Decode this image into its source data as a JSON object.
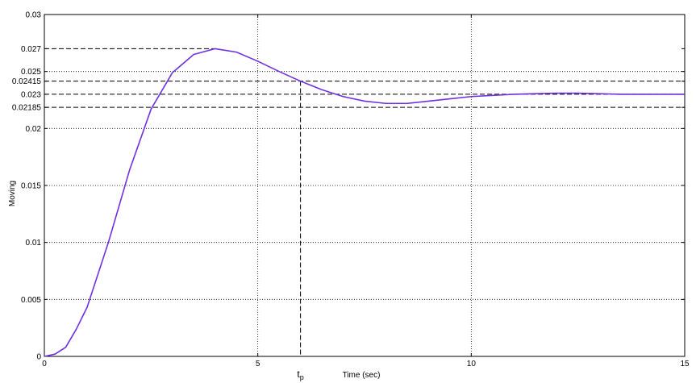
{
  "chart_data": {
    "type": "line",
    "xlabel": "Time (sec)",
    "ylabel": "Moving",
    "x": [
      0,
      0.25,
      0.5,
      0.75,
      1,
      1.5,
      2,
      2.5,
      3,
      3.5,
      4,
      4.5,
      5,
      5.5,
      6,
      6.5,
      7,
      7.5,
      8,
      8.5,
      9,
      9.5,
      10,
      10.5,
      11,
      11.5,
      12,
      12.5,
      13,
      13.5,
      14,
      14.5,
      15
    ],
    "series": [
      {
        "color": "#7030e0",
        "values": [
          0,
          0.0002,
          0.0008,
          0.0024,
          0.0043,
          0.01,
          0.0164,
          0.0217,
          0.0249,
          0.0265,
          0.027,
          0.0267,
          0.0259,
          0.025,
          0.02415,
          0.0234,
          0.0228,
          0.0224,
          0.0222,
          0.0222,
          0.0224,
          0.0226,
          0.0228,
          0.0229,
          0.023,
          0.02305,
          0.0231,
          0.0231,
          0.02305,
          0.023,
          0.023,
          0.023,
          0.023
        ]
      }
    ],
    "xlim": [
      0,
      15
    ],
    "xticks": [
      0,
      5,
      10,
      15
    ],
    "ylim": [
      0,
      0.03
    ],
    "yticks": [
      0,
      0.005,
      0.01,
      0.015,
      0.02,
      0.02185,
      0.023,
      0.02415,
      0.025,
      0.027,
      0.03
    ],
    "grid_x": [
      5,
      10
    ],
    "grid_y": [
      0.005,
      0.01,
      0.015,
      0.02,
      0.025
    ],
    "hlines": [
      {
        "y": 0.027,
        "x_end": 4
      },
      {
        "y": 0.02415,
        "x_end": 15
      },
      {
        "y": 0.023,
        "x_end": 15
      },
      {
        "y": 0.02185,
        "x_end": 15
      }
    ],
    "vlines": [
      {
        "x": 6,
        "y_end": 0.02415
      }
    ],
    "annotation": {
      "x": 6,
      "text": "t",
      "subscript": "p"
    }
  }
}
